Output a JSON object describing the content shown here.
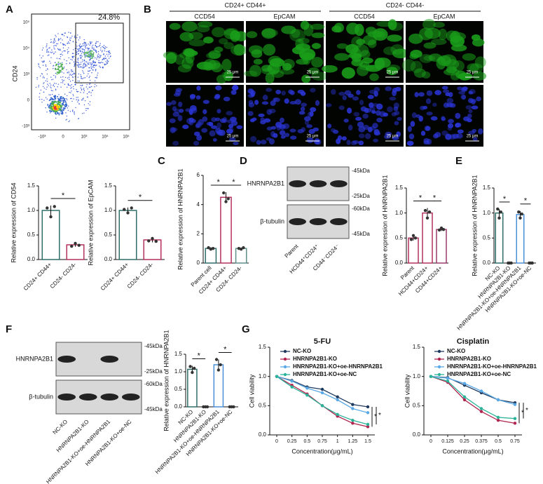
{
  "panels": {
    "labels": [
      "A",
      "B",
      "C",
      "D",
      "E",
      "F",
      "G"
    ],
    "flow": {
      "gate": "24.8%",
      "y_label": "CD24",
      "y_ticks": [
        "10⁵",
        "10⁴",
        "10³",
        "0",
        "-10³"
      ],
      "x_ticks": [
        "-10³",
        "0",
        "10³",
        "10⁴",
        "10⁵"
      ]
    },
    "micro": {
      "groups": [
        "CD24+ CD44+",
        "CD24- CD44-"
      ],
      "columns": [
        "CCD54",
        "EpCAM",
        "CCD54",
        "EpCAM"
      ],
      "scale": "25 μm"
    },
    "blot_d": {
      "protein": "HNRNPA2B1",
      "control": "β-tubulin",
      "markers": [
        "-45kDa",
        "-25kDa",
        "-60kDa",
        "-45kDa"
      ],
      "lanes": [
        "Parent",
        "HCD44⁺CD24⁺",
        "CD44⁻CD24⁻"
      ]
    },
    "blot_f": {
      "protein": "HNRNPA2B1",
      "control": "β-tubulin",
      "markers": [
        "-45kDa",
        "-25kDa",
        "-60kDa",
        "-45kDa"
      ],
      "lanes": [
        "NC-KO",
        "HNRNPA2B1-KO",
        "HNRNPA2B1-KO+oe-HNRNPA2B1",
        "HNRNPA2B1-KO+oe-NC"
      ]
    }
  },
  "chart_data": [
    {
      "type": "bar",
      "y_label": "Relative expression of CD54",
      "categories": [
        "CD24+ CD44+",
        "CD24- CD24-"
      ],
      "values": [
        1.0,
        0.3
      ],
      "errors": [
        0.1,
        0.04
      ],
      "points": [
        [
          1.05,
          0.87,
          1.08
        ],
        [
          0.27,
          0.33,
          0.29
        ]
      ],
      "colors": [
        "#2f6f6a",
        "#b3305f"
      ],
      "ylim": [
        0,
        1.5
      ],
      "yticks": [
        {
          "value": 0,
          "label": "0.0"
        },
        0.5,
        {
          "value": 1,
          "label": "1.0"
        },
        1.5
      ],
      "significance": [
        "*"
      ]
    },
    {
      "type": "bar",
      "y_label": "Relative expression of EpCAM",
      "categories": [
        "CD24+ CD44+",
        "CD24- CD24-"
      ],
      "values": [
        1.0,
        0.4
      ],
      "errors": [
        0.06,
        0.05
      ],
      "points": [
        [
          1.02,
          0.95,
          1.05
        ],
        [
          0.38,
          0.43,
          0.37
        ]
      ],
      "colors": [
        "#2f6f6a",
        "#b3305f"
      ],
      "ylim": [
        0,
        1.5
      ],
      "yticks": [
        {
          "value": 0,
          "label": "0.0"
        },
        0.5,
        {
          "value": 1,
          "label": "1.0"
        },
        1.5
      ],
      "significance": [
        "*"
      ]
    },
    {
      "type": "bar",
      "y_label": "Relative expression of HNRNPA2B1",
      "categories": [
        "Parent cell",
        "CD24+ CD44+",
        "CD24- CD24-"
      ],
      "values": [
        1.0,
        4.5,
        1.0
      ],
      "errors": [
        0.08,
        0.35,
        0.06
      ],
      "points": [
        [
          1.05,
          0.95,
          1.0
        ],
        [
          4.8,
          4.2,
          4.4
        ],
        [
          1.0,
          0.95,
          1.05
        ]
      ],
      "colors": [
        "#2f6f6a",
        "#b3305f",
        "#5f8f8a"
      ],
      "ylim": [
        0,
        6
      ],
      "yticks": [
        0,
        2,
        4,
        6
      ],
      "significance": [
        "*",
        "*"
      ]
    },
    {
      "type": "bar",
      "y_label": "Relative expression of HNRNPA2B1",
      "categories": [
        "Parent",
        "HCD44+CD24+",
        "CD44+CD24+"
      ],
      "values": [
        0.5,
        1.0,
        0.67
      ],
      "errors": [
        0.05,
        0.1,
        0.03
      ],
      "points": [
        [
          0.47,
          0.55,
          0.5
        ],
        [
          1.05,
          0.9,
          1.02
        ],
        [
          0.66,
          0.7,
          0.67
        ]
      ],
      "colors": [
        "#b3305f",
        "#b3305f",
        "#9a3a6a"
      ],
      "ylim": [
        0,
        1.5
      ],
      "yticks": [
        {
          "value": 0,
          "label": "0.0"
        },
        0.5,
        {
          "value": 1,
          "label": "1.0"
        },
        1.5
      ],
      "significance": [
        "*",
        "*"
      ]
    },
    {
      "type": "bar",
      "y_label": "Relative expression of HNRNPA2B1",
      "categories": [
        "NC-KO",
        "HNRNPA2B1-KO",
        "HNRNPA2B1-KO+oe-HNRNPA2B1",
        "HNRNPA2B1-KO+oe-NC"
      ],
      "values": [
        1.0,
        0,
        0.97,
        0
      ],
      "errors": [
        0.08,
        0,
        0.07,
        0
      ],
      "points": [
        [
          1.08,
          0.9,
          1.02
        ],
        [
          0,
          0,
          0
        ],
        [
          1.02,
          0.9,
          0.98
        ],
        [
          0,
          0,
          0
        ]
      ],
      "colors": [
        "#2f6f6a",
        "#b3305f",
        "#4a90d9",
        "#2ab39a"
      ],
      "ylim": [
        0,
        1.5
      ],
      "yticks": [
        {
          "value": 0,
          "label": "0.0"
        },
        0.5,
        {
          "value": 1,
          "label": "1.0"
        },
        1.5
      ],
      "significance": [
        "*",
        "*"
      ]
    },
    {
      "type": "bar",
      "y_label": "Relative expression of HNRNPA2B1",
      "categories": [
        "NC-KO",
        "HNRNPA2B1-KO",
        "HNRNPA2B1-KO+oe-HNRNPA2B1",
        "HNRNPA2B1-KO+oe-NC"
      ],
      "values": [
        1.07,
        0,
        1.2,
        0
      ],
      "errors": [
        0.1,
        0,
        0.15,
        0
      ],
      "points": [
        [
          1.15,
          0.98,
          1.1
        ],
        [
          0,
          0,
          0
        ],
        [
          1.35,
          1.05,
          1.2
        ],
        [
          0,
          0,
          0
        ]
      ],
      "colors": [
        "#2f6f6a",
        "#b3305f",
        "#4a90d9",
        "#2ab39a"
      ],
      "ylim": [
        0,
        1.5
      ],
      "yticks": [
        {
          "value": 0,
          "label": "0.0"
        },
        0.5,
        {
          "value": 1,
          "label": "1.0"
        },
        1.5
      ],
      "significance": [
        "*",
        "*"
      ]
    },
    {
      "type": "line",
      "title": "5-FU",
      "x_label": "Concentration(μg/mL)",
      "y_label": "Cell viability",
      "categories": [
        "0",
        "0.25",
        "0.5",
        "0.75",
        "1",
        "1.25",
        "1.5"
      ],
      "ylim": [
        0,
        1.5
      ],
      "yticks": [
        {
          "value": 0,
          "label": "0.0"
        },
        0.5,
        {
          "value": 1,
          "label": "1.0"
        },
        1.5
      ],
      "significance": [
        "*",
        "*"
      ],
      "series": [
        {
          "name": "NC-KO",
          "color": "#1f3a5f",
          "values": [
            1.0,
            0.93,
            0.82,
            0.78,
            0.65,
            0.52,
            0.48
          ]
        },
        {
          "name": "HNRNPA2B1-KO",
          "color": "#b0254f",
          "values": [
            1.0,
            0.85,
            0.7,
            0.5,
            0.32,
            0.2,
            0.14
          ]
        },
        {
          "name": "HNRNPA2B1-KO+oe-HNRNPA2B1",
          "color": "#5aa9e6",
          "values": [
            1.0,
            0.92,
            0.8,
            0.72,
            0.6,
            0.45,
            0.38
          ]
        },
        {
          "name": "HNRNPA2B1-KO+oe-NC",
          "color": "#2bb39a",
          "values": [
            1.0,
            0.82,
            0.68,
            0.5,
            0.35,
            0.25,
            0.18
          ]
        }
      ]
    },
    {
      "type": "line",
      "title": "Cisplatin",
      "x_label": "Concentration(μg/mL)",
      "y_label": "Cell viability",
      "categories": [
        "0",
        "0.125",
        "0.25",
        "0.375",
        "0.5",
        "0.75"
      ],
      "ylim": [
        0,
        1.5
      ],
      "yticks": [
        {
          "value": 0,
          "label": "0.0"
        },
        0.5,
        {
          "value": 1,
          "label": "1.0"
        },
        1.5
      ],
      "significance": [
        "*",
        "*"
      ],
      "series": [
        {
          "name": "NC-KO",
          "color": "#1f3a5f",
          "values": [
            1.0,
            0.98,
            0.85,
            0.72,
            0.6,
            0.55
          ]
        },
        {
          "name": "HNRNPA2B1-KO",
          "color": "#b0254f",
          "values": [
            1.0,
            0.9,
            0.6,
            0.4,
            0.25,
            0.2
          ]
        },
        {
          "name": "HNRNPA2B1-KO+oe-HNRNPA2B1",
          "color": "#5aa9e6",
          "values": [
            1.0,
            0.97,
            0.88,
            0.75,
            0.6,
            0.52
          ]
        },
        {
          "name": "HNRNPA2B1-KO+oe-NC",
          "color": "#2bb39a",
          "values": [
            1.0,
            0.92,
            0.65,
            0.45,
            0.3,
            0.28
          ]
        }
      ]
    }
  ]
}
